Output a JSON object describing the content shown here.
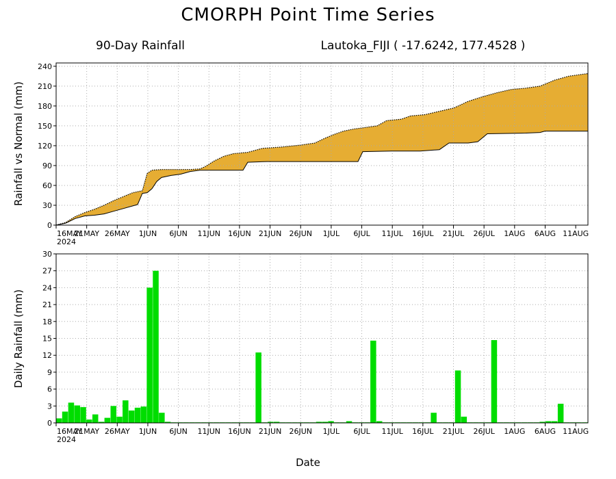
{
  "title": "CMORPH Point Time Series",
  "subtitle_left": "90-Day Rainfall",
  "subtitle_right": "Lautoka_FIJI ( -17.6242, 177.4528 )",
  "xlabel": "Date",
  "colors": {
    "above_normal": "#e6ad33",
    "below_normal": "#1f3cff",
    "daily_bars": "#00dd00",
    "grid": "#aaaaaa"
  },
  "chart_data": [
    {
      "type": "area",
      "ylabel": "Rainfall vs Normal (mm)",
      "ylim": [
        0,
        245
      ],
      "yticks": [
        0,
        30,
        60,
        90,
        120,
        150,
        180,
        210,
        240
      ],
      "xticks": [
        "16MAY",
        "21MAY",
        "26MAY",
        "1JUN",
        "6JUN",
        "11JUN",
        "16JUN",
        "21JUN",
        "26JUN",
        "1JUL",
        "6JUL",
        "11JUL",
        "16JUL",
        "21JUL",
        "26JUL",
        "1AUG",
        "6AUG",
        "11AUG"
      ],
      "xtick_year": "2024",
      "xrange_days": [
        0,
        87
      ],
      "grid": true,
      "series": [
        {
          "name": "",
          "style": "dotted",
          "points": [
            [
              0,
              0
            ],
            [
              2,
              4
            ],
            [
              4,
              13
            ],
            [
              6,
              19
            ],
            [
              8,
              24
            ],
            [
              10,
              30
            ],
            [
              12,
              37
            ],
            [
              14,
              43
            ],
            [
              16,
              49
            ],
            [
              18,
              52
            ],
            [
              19,
              78
            ],
            [
              20,
              83
            ],
            [
              22,
              84
            ],
            [
              24,
              84
            ],
            [
              26,
              84
            ],
            [
              28,
              84
            ],
            [
              30,
              85
            ],
            [
              31,
              88
            ],
            [
              33,
              97
            ],
            [
              35,
              104
            ],
            [
              37,
              108
            ],
            [
              40,
              110
            ],
            [
              43,
              116
            ],
            [
              47,
              118
            ],
            [
              51,
              121
            ],
            [
              54,
              124
            ],
            [
              56,
              131
            ],
            [
              58,
              137
            ],
            [
              60,
              142
            ],
            [
              62,
              145
            ],
            [
              64,
              147
            ],
            [
              67,
              150
            ],
            [
              69,
              158
            ],
            [
              72,
              160
            ],
            [
              74,
              165
            ],
            [
              77,
              167
            ],
            [
              80,
              172
            ],
            [
              83,
              177
            ],
            [
              86,
              187
            ],
            [
              89,
              194
            ],
            [
              92,
              200
            ],
            [
              95,
              205
            ],
            [
              98,
              207
            ],
            [
              101,
              210
            ],
            [
              104,
              219
            ],
            [
              107,
              225
            ],
            [
              110,
              228
            ],
            [
              111,
              229
            ]
          ]
        },
        {
          "name": "",
          "style": "solid",
          "points": [
            [
              0,
              0
            ],
            [
              2,
              3
            ],
            [
              4,
              10
            ],
            [
              6,
              14
            ],
            [
              8,
              15
            ],
            [
              10,
              17
            ],
            [
              12,
              21
            ],
            [
              14,
              25
            ],
            [
              16,
              29
            ],
            [
              17,
              31
            ],
            [
              18,
              48
            ],
            [
              19,
              49
            ],
            [
              20,
              55
            ],
            [
              21,
              66
            ],
            [
              22,
              72
            ],
            [
              24,
              75
            ],
            [
              26,
              77
            ],
            [
              28,
              81
            ],
            [
              30,
              83
            ],
            [
              36,
              83
            ],
            [
              39,
              83
            ],
            [
              40,
              95
            ],
            [
              44,
              96
            ],
            [
              50,
              96
            ],
            [
              56,
              96
            ],
            [
              59,
              96
            ],
            [
              63,
              96
            ],
            [
              64,
              111
            ],
            [
              70,
              112
            ],
            [
              76,
              112
            ],
            [
              80,
              114
            ],
            [
              82,
              124
            ],
            [
              86,
              124
            ],
            [
              88,
              126
            ],
            [
              90,
              138
            ],
            [
              98,
              139
            ],
            [
              101,
              140
            ],
            [
              102,
              142
            ],
            [
              111,
              142
            ]
          ]
        }
      ]
    },
    {
      "type": "bar",
      "ylabel": "Daily Rainfall (mm)",
      "ylim": [
        0,
        30
      ],
      "yticks": [
        0,
        3,
        6,
        9,
        12,
        15,
        18,
        21,
        24,
        27,
        30
      ],
      "xticks": [
        "16MAY",
        "21MAY",
        "26MAY",
        "1JUN",
        "6JUN",
        "11JUN",
        "16JUN",
        "21JUN",
        "26JUN",
        "1JUL",
        "6JUL",
        "11JUL",
        "16JUL",
        "21JUL",
        "26JUL",
        "1AUG",
        "6AUG",
        "11AUG"
      ],
      "xtick_year": "2024",
      "xrange_days": [
        0,
        87
      ],
      "grid": true,
      "values": [
        0.8,
        2.0,
        3.6,
        3.1,
        2.8,
        0.6,
        1.5,
        0.2,
        0.9,
        3.0,
        1.1,
        4.0,
        2.2,
        2.7,
        2.9,
        24.0,
        27.0,
        1.8,
        0.2,
        0.1,
        0.1,
        0.1,
        0.1,
        0.1,
        0.1,
        0.1,
        0.1,
        0.1,
        0.1,
        0.1,
        0.1,
        0.1,
        0.1,
        12.5,
        0.1,
        0.2,
        0.2,
        0.1,
        0.1,
        0.1,
        0.1,
        0.1,
        0.1,
        0.2,
        0.2,
        0.3,
        0.1,
        0.1,
        0.3,
        0.1,
        0.1,
        0.1,
        14.6,
        0.3,
        0.1,
        0.1,
        0.1,
        0.1,
        0.1,
        0.1,
        0.1,
        0.1,
        1.8,
        0.1,
        0.1,
        0.1,
        9.3,
        1.1,
        0.1,
        0.1,
        0.1,
        0.1,
        14.7,
        0.1,
        0.1,
        0.1,
        0.1,
        0.1,
        0.1,
        0.1,
        0.2,
        0.3,
        0.3,
        3.4,
        0.1,
        0.1,
        0.1,
        0.1
      ]
    }
  ]
}
